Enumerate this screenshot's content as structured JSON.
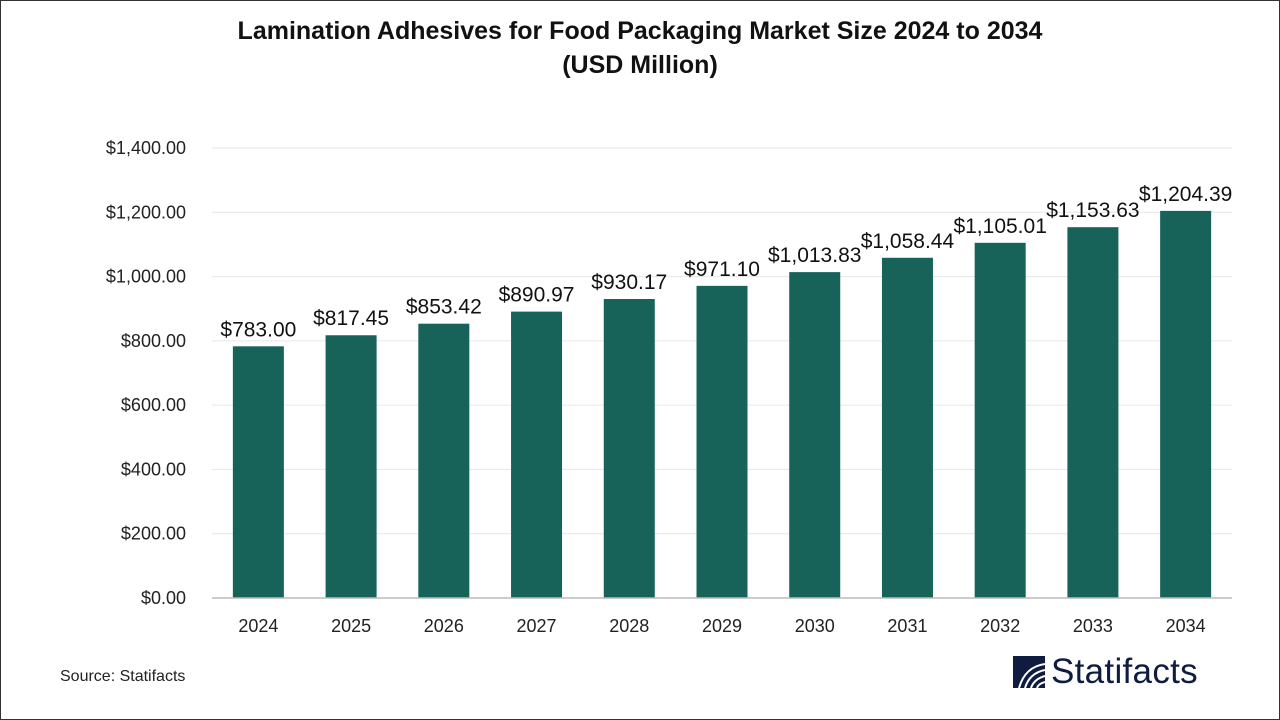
{
  "chart_data": {
    "type": "bar",
    "title": "Lamination Adhesives for Food Packaging Market Size 2024 to 2034",
    "subtitle": "(USD Million)",
    "categories": [
      "2024",
      "2025",
      "2026",
      "2027",
      "2028",
      "2029",
      "2030",
      "2031",
      "2032",
      "2033",
      "2034"
    ],
    "values": [
      783.0,
      817.45,
      853.42,
      890.97,
      930.17,
      971.1,
      1013.83,
      1058.44,
      1105.01,
      1153.63,
      1204.39
    ],
    "data_labels": [
      "$783.00",
      "$817.45",
      "$853.42",
      "$890.97",
      "$930.17",
      "$971.10",
      "$1,013.83",
      "$1,058.44",
      "$1,105.01",
      "$1,153.63",
      "$1,204.39"
    ],
    "yticks": [
      0,
      200,
      400,
      600,
      800,
      1000,
      1200,
      1400
    ],
    "ytick_labels": [
      "$0.00",
      "$200.00",
      "$400.00",
      "$600.00",
      "$800.00",
      "$1,000.00",
      "$1,200.00",
      "$1,400.00"
    ],
    "ylim": [
      0,
      1400
    ],
    "xlabel": "",
    "ylabel": "",
    "grid": true,
    "bar_color": "#17635a"
  },
  "source": "Source: Statifacts",
  "logo": {
    "text": "Statifacts",
    "color": "#0f1c3f"
  }
}
